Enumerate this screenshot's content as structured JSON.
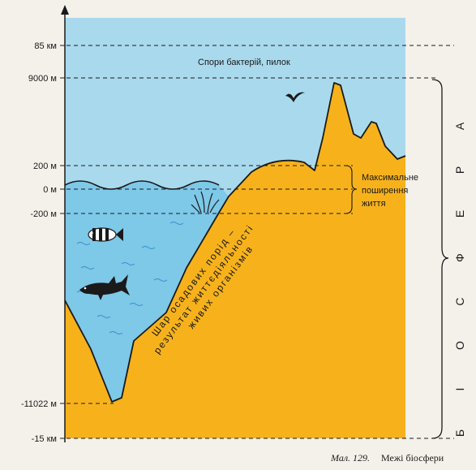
{
  "levels": [
    {
      "label": "85 км"
    },
    {
      "label": "9000 м"
    },
    {
      "label": "200 м"
    },
    {
      "label": "0 м"
    },
    {
      "label": "-200 м"
    },
    {
      "label": "-11022 м"
    },
    {
      "label": "-15 км"
    }
  ],
  "annotations": {
    "spores": "Спори бактерій, пилок",
    "max_life": [
      "Максимальне",
      "поширення",
      "життя"
    ],
    "sediment_lines": [
      "Шар осадових порід –",
      "результат життєдіяльності",
      "живих організмів"
    ],
    "biosphere_letters": [
      "Б",
      "І",
      "О",
      "С",
      "Ф",
      "Е",
      "Р",
      "А"
    ]
  },
  "caption": {
    "number": "Мал. 129.",
    "text": "Межі біосфери"
  },
  "colors": {
    "sky": "#a9d9ec",
    "water": "#7ec8e8",
    "land": "#f7b21b",
    "ink": "#1a1a1a"
  },
  "icons": [
    "fish-icon",
    "shark-icon",
    "bird-icon",
    "seaweed-icon"
  ]
}
